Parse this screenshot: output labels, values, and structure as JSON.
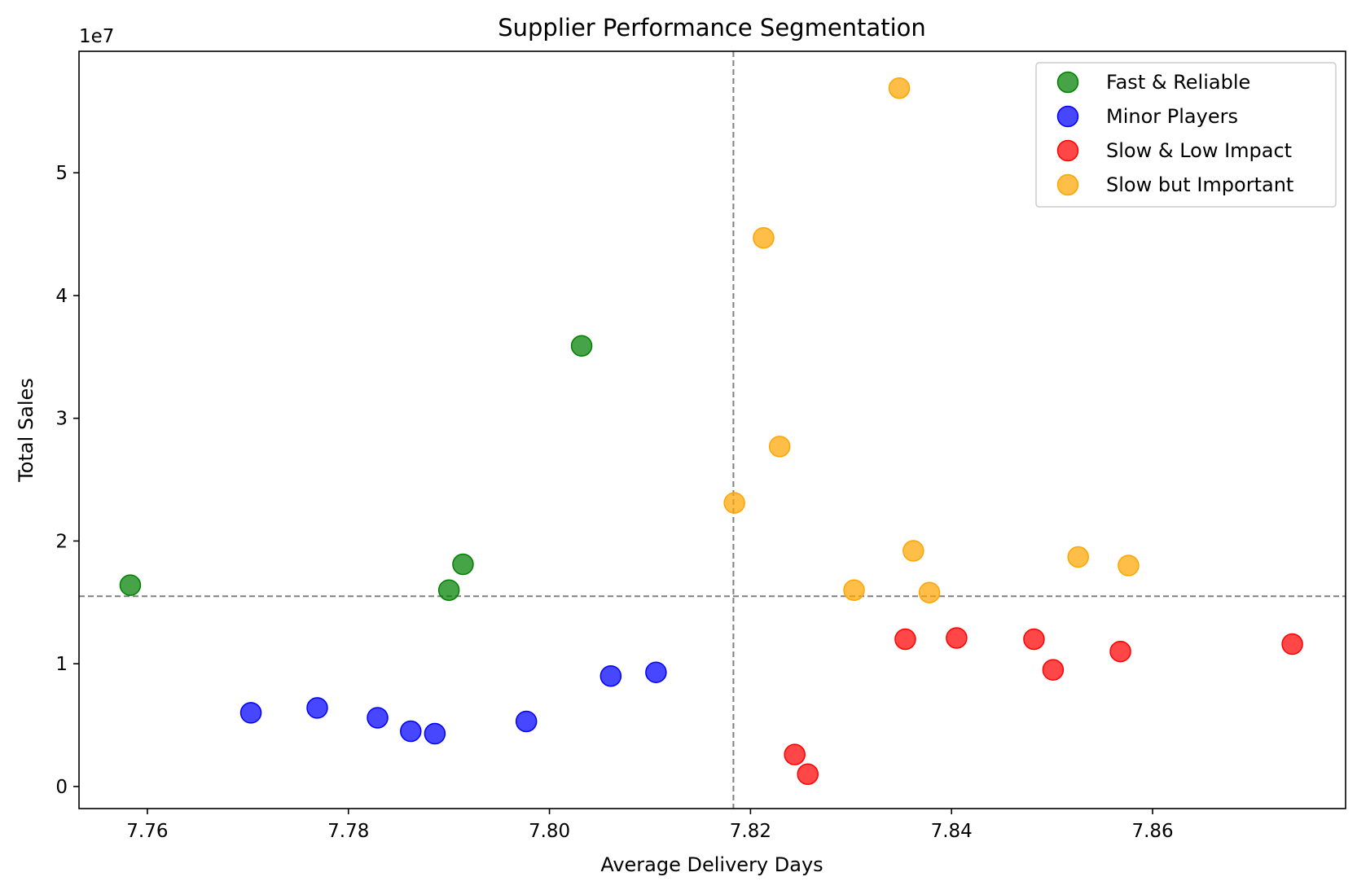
{
  "chart_data": {
    "type": "scatter",
    "title": "Supplier Performance Segmentation",
    "xlabel": "Average Delivery Days",
    "ylabel": "Total Sales",
    "y_offset_label": "1e7",
    "xlim": [
      7.7532,
      7.8792
    ],
    "ylim": [
      -0.18,
      5.99
    ],
    "x_ticks": [
      {
        "value": 7.76,
        "label": "7.76"
      },
      {
        "value": 7.78,
        "label": "7.78"
      },
      {
        "value": 7.8,
        "label": "7.80"
      },
      {
        "value": 7.82,
        "label": "7.82"
      },
      {
        "value": 7.84,
        "label": "7.84"
      },
      {
        "value": 7.86,
        "label": "7.86"
      }
    ],
    "y_ticks": [
      {
        "value": 0,
        "label": "0"
      },
      {
        "value": 1,
        "label": "1"
      },
      {
        "value": 2,
        "label": "2"
      },
      {
        "value": 3,
        "label": "3"
      },
      {
        "value": 4,
        "label": "4"
      },
      {
        "value": 5,
        "label": "5"
      }
    ],
    "reference_lines": {
      "vertical_x": 7.8183,
      "horizontal_y": 1.55
    },
    "grid": false,
    "legend_position": "top-right",
    "series": [
      {
        "name": "Fast & Reliable",
        "color": "#008000",
        "points": [
          {
            "x": 7.7583,
            "y": 1.64
          },
          {
            "x": 7.79,
            "y": 1.6
          },
          {
            "x": 7.7914,
            "y": 1.81
          },
          {
            "x": 7.8032,
            "y": 3.59
          }
        ]
      },
      {
        "name": "Minor Players",
        "color": "#0000ff",
        "points": [
          {
            "x": 7.7703,
            "y": 0.6
          },
          {
            "x": 7.7769,
            "y": 0.64
          },
          {
            "x": 7.7829,
            "y": 0.56
          },
          {
            "x": 7.7862,
            "y": 0.45
          },
          {
            "x": 7.7886,
            "y": 0.43
          },
          {
            "x": 7.7977,
            "y": 0.53
          },
          {
            "x": 7.8061,
            "y": 0.9
          },
          {
            "x": 7.8106,
            "y": 0.93
          }
        ]
      },
      {
        "name": "Slow & Low Impact",
        "color": "#ff0000",
        "points": [
          {
            "x": 7.8244,
            "y": 0.26
          },
          {
            "x": 7.8257,
            "y": 0.1
          },
          {
            "x": 7.8354,
            "y": 1.2
          },
          {
            "x": 7.8405,
            "y": 1.21
          },
          {
            "x": 7.8482,
            "y": 1.2
          },
          {
            "x": 7.8501,
            "y": 0.95
          },
          {
            "x": 7.8568,
            "y": 1.1
          },
          {
            "x": 7.8739,
            "y": 1.16
          }
        ]
      },
      {
        "name": "Slow but Important",
        "color": "#ffa500",
        "points": [
          {
            "x": 7.8184,
            "y": 2.31
          },
          {
            "x": 7.8213,
            "y": 4.47
          },
          {
            "x": 7.8229,
            "y": 2.77
          },
          {
            "x": 7.8303,
            "y": 1.6
          },
          {
            "x": 7.8348,
            "y": 5.69
          },
          {
            "x": 7.8362,
            "y": 1.92
          },
          {
            "x": 7.8378,
            "y": 1.58
          },
          {
            "x": 7.8526,
            "y": 1.87
          },
          {
            "x": 7.8576,
            "y": 1.8
          }
        ]
      }
    ]
  }
}
